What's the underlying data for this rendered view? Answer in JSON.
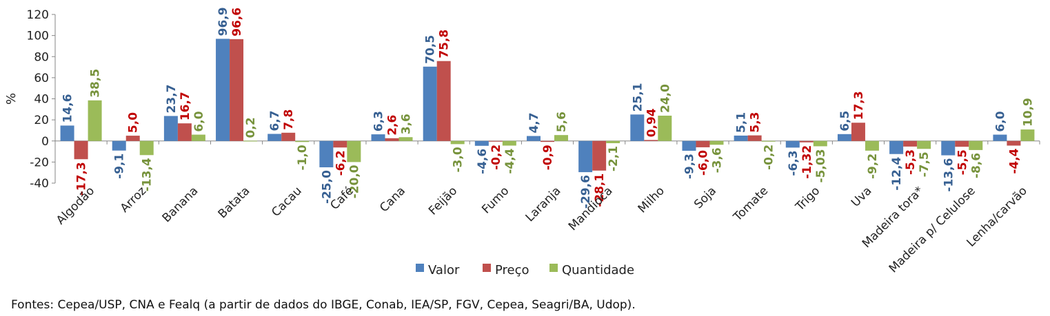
{
  "chart_data": {
    "type": "bar",
    "ylabel": "%",
    "ylim": [
      -40,
      120
    ],
    "yticks": [
      -40,
      -20,
      0,
      20,
      40,
      60,
      80,
      100,
      120
    ],
    "grid": false,
    "legend_position": "bottom",
    "categories": [
      "Algodão",
      "Arroz",
      "Banana",
      "Batata",
      "Cacau",
      "Café",
      "Cana",
      "Feijão",
      "Fumo",
      "Laranja",
      "Mandioca",
      "Milho",
      "Soja",
      "Tomate",
      "Trigo",
      "Uva",
      "Madeira tora*",
      "Madeira p/ Celulose",
      "Lenha/carvão"
    ],
    "series": [
      {
        "name": "Valor",
        "color": "#4f81bd",
        "values": [
          14.6,
          -9.1,
          23.7,
          96.9,
          6.7,
          -25.0,
          6.3,
          70.5,
          -4.6,
          4.7,
          -29.6,
          25.1,
          -9.3,
          5.1,
          -6.3,
          6.5,
          -12.4,
          -13.6,
          6.0
        ],
        "labels": [
          "14,6",
          "-9,1",
          "23,7",
          "96,9",
          "6,7",
          "-25,0",
          "6,3",
          "70,5",
          "-4,6",
          "4,7",
          "-29,6",
          "25,1",
          "-9,3",
          "5,1",
          "-6,3",
          "6,5",
          "-12,4",
          "-13,6",
          "6,0"
        ]
      },
      {
        "name": "Preço",
        "color": "#c0504d",
        "values": [
          -17.3,
          5.0,
          16.7,
          96.6,
          7.8,
          -6.2,
          2.6,
          75.8,
          -0.2,
          -0.9,
          -28.1,
          0.94,
          -6.0,
          5.3,
          -1.32,
          17.3,
          -5.3,
          -5.5,
          -4.4
        ],
        "labels": [
          "-17,3",
          "5,0",
          "16,7",
          "96,6",
          "7,8",
          "-6,2",
          "2,6",
          "75,8",
          "-0,2",
          "-0,9",
          "-28,1",
          "0,94",
          "-6,0",
          "5,3",
          "-1,32",
          "17,3",
          "-5,3",
          "-5,5",
          "-4,4"
        ]
      },
      {
        "name": "Quantidade",
        "color": "#9bbb59",
        "values": [
          38.5,
          -13.4,
          6.0,
          0.2,
          -1.0,
          -20.0,
          3.6,
          -3.0,
          -4.4,
          5.6,
          -2.1,
          24.0,
          -3.6,
          -0.2,
          -5.03,
          -9.2,
          -7.5,
          -8.6,
          10.9
        ],
        "labels": [
          "38,5",
          "-13,4",
          "6,0",
          "0,2",
          "-1,0",
          "-20,0",
          "3,6",
          "-3,0",
          "-4,4",
          "5,6",
          "-2,1",
          "24,0",
          "-3,6",
          "-0,2",
          "-5,03",
          "-9,2",
          "-7,5",
          "-8,6",
          "10,9"
        ]
      }
    ],
    "label_colors": [
      "#376092",
      "#c00000",
      "#77933c"
    ]
  },
  "source_text": "Fontes: Cepea/USP, CNA e Fealq (a partir de dados do IBGE, Conab, IEA/SP, FGV, Cepea, Seagri/BA, Udop)."
}
